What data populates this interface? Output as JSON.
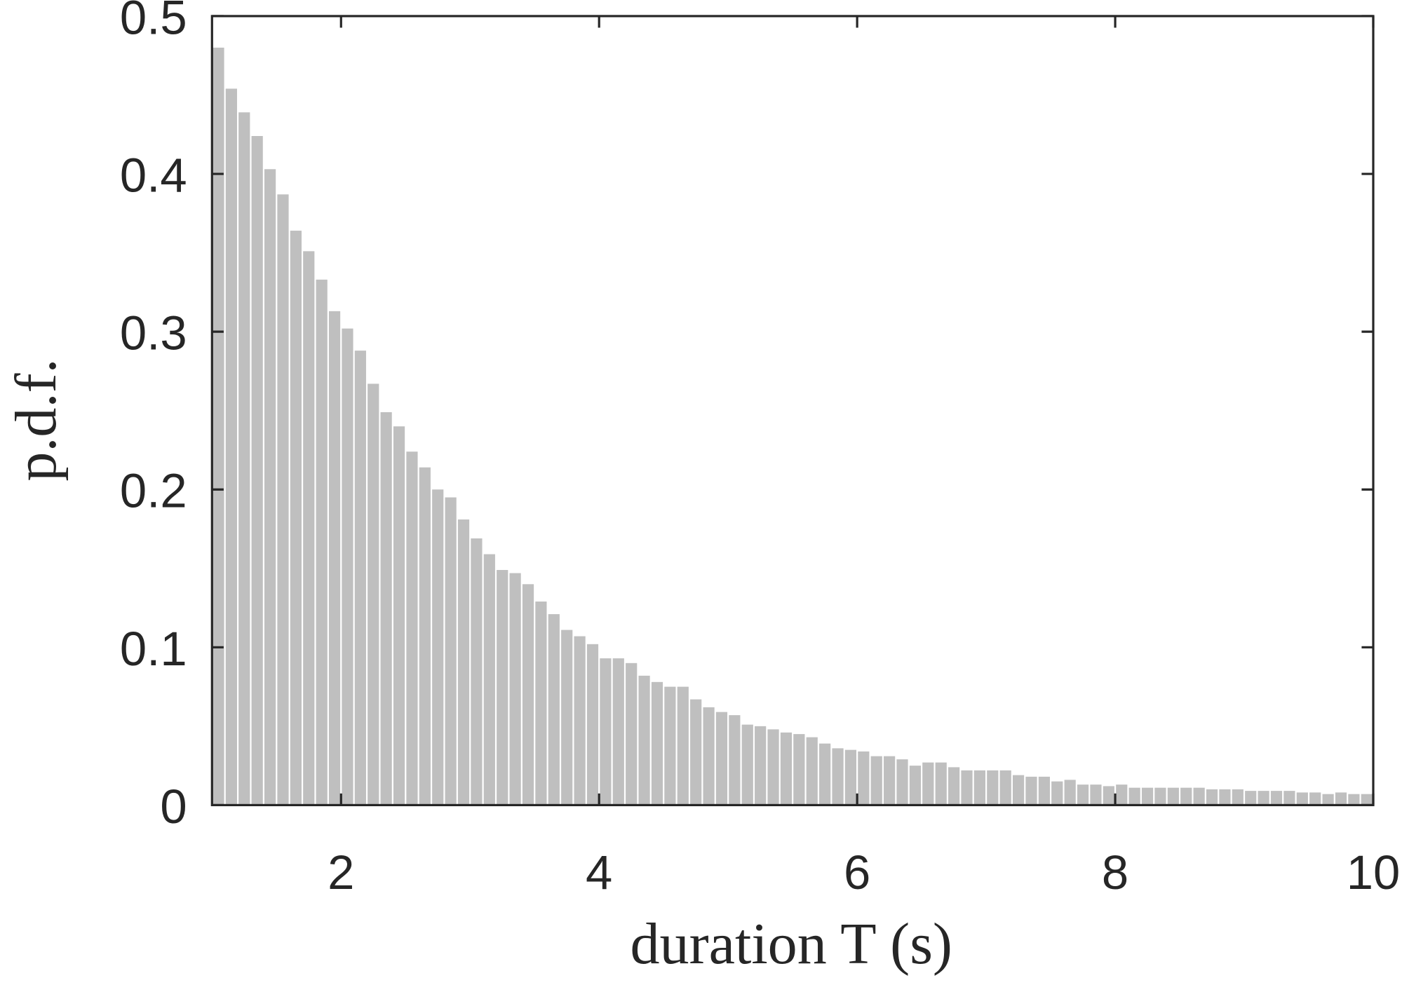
{
  "chart_data": {
    "type": "histogram",
    "xlabel": "duration T (s)",
    "ylabel": "p.d.f.",
    "bins": [
      1,
      1.1,
      1.2,
      1.3,
      1.4,
      1.5,
      1.6,
      1.7,
      1.8,
      1.9,
      2,
      2.1,
      2.2,
      2.3,
      2.4,
      2.5,
      2.6,
      2.7,
      2.8,
      2.9,
      3,
      3.1,
      3.2,
      3.3,
      3.4,
      3.5,
      3.6,
      3.7,
      3.8,
      3.9,
      4,
      4.1,
      4.2,
      4.3,
      4.4,
      4.5,
      4.6,
      4.7,
      4.8,
      4.9,
      5,
      5.1,
      5.2,
      5.3,
      5.4,
      5.5,
      5.6,
      5.7,
      5.8,
      5.9,
      6,
      6.1,
      6.2,
      6.3,
      6.4,
      6.5,
      6.6,
      6.7,
      6.8,
      6.9,
      7,
      7.1,
      7.2,
      7.3,
      7.4,
      7.5,
      7.6,
      7.7,
      7.8,
      7.9,
      8,
      8.1,
      8.2,
      8.3,
      8.4,
      8.5,
      8.6,
      8.7,
      8.8,
      8.9,
      9,
      9.1,
      9.2,
      9.3,
      9.4,
      9.5,
      9.6,
      9.7,
      9.8,
      9.9,
      10
    ],
    "values": [
      0.48,
      0.454,
      0.439,
      0.424,
      0.403,
      0.387,
      0.364,
      0.351,
      0.333,
      0.313,
      0.302,
      0.288,
      0.267,
      0.249,
      0.24,
      0.224,
      0.214,
      0.2,
      0.195,
      0.181,
      0.169,
      0.159,
      0.149,
      0.147,
      0.14,
      0.129,
      0.121,
      0.111,
      0.107,
      0.102,
      0.093,
      0.093,
      0.09,
      0.082,
      0.078,
      0.075,
      0.075,
      0.067,
      0.062,
      0.059,
      0.057,
      0.051,
      0.05,
      0.048,
      0.046,
      0.045,
      0.043,
      0.039,
      0.036,
      0.035,
      0.034,
      0.031,
      0.031,
      0.029,
      0.025,
      0.027,
      0.027,
      0.024,
      0.022,
      0.022,
      0.022,
      0.022,
      0.019,
      0.018,
      0.018,
      0.015,
      0.016,
      0.013,
      0.013,
      0.012,
      0.013,
      0.011,
      0.011,
      0.011,
      0.011,
      0.011,
      0.011,
      0.01,
      0.01,
      0.01,
      0.009,
      0.009,
      0.009,
      0.009,
      0.008,
      0.008,
      0.007,
      0.008,
      0.007,
      0.007
    ],
    "color": "#bfbfbf",
    "xlim": [
      1,
      10
    ],
    "xticks": [
      2,
      4,
      6,
      8,
      10
    ],
    "ylim": [
      0,
      0.5
    ],
    "yticks": [
      0,
      0.1,
      0.2,
      0.3,
      0.4,
      0.5
    ]
  }
}
